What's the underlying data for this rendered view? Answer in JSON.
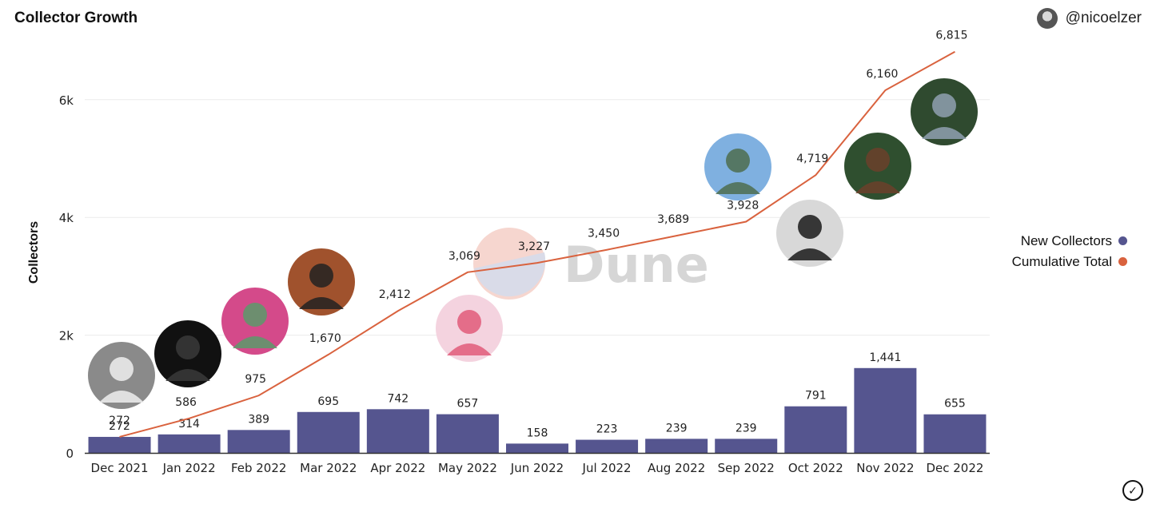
{
  "header": {
    "title": "Collector Growth",
    "username": "@nicoelzer"
  },
  "colors": {
    "new": "#55558f",
    "cumulative": "#d9623e",
    "watermark": "#d4d4d4"
  },
  "watermark": {
    "text": "Dune"
  },
  "legend": {
    "new_label": "New Collectors",
    "cumulative_label": "Cumulative Total"
  },
  "chart_data": {
    "type": "bar",
    "title": "Collector Growth",
    "ylabel": "Collectors",
    "xlabel": "",
    "ylim": [
      0,
      6800
    ],
    "yticks": [
      0,
      2000,
      4000,
      6000
    ],
    "ytick_labels": [
      "0",
      "2k",
      "4k",
      "6k"
    ],
    "grid": true,
    "legend_position": "right",
    "categories": [
      "Dec 2021",
      "Jan 2022",
      "Feb 2022",
      "Mar 2022",
      "Apr 2022",
      "May 2022",
      "Jun 2022",
      "Jul 2022",
      "Aug 2022",
      "Sep 2022",
      "Oct 2022",
      "Nov 2022",
      "Dec 2022"
    ],
    "series": [
      {
        "name": "New Collectors",
        "type": "bar",
        "values": [
          272,
          314,
          389,
          695,
          742,
          657,
          158,
          223,
          239,
          239,
          791,
          1441,
          655
        ]
      },
      {
        "name": "Cumulative Total",
        "type": "line",
        "values": [
          272,
          586,
          975,
          1670,
          2412,
          3069,
          3227,
          3450,
          3689,
          3928,
          4719,
          6160,
          6815
        ]
      }
    ]
  }
}
